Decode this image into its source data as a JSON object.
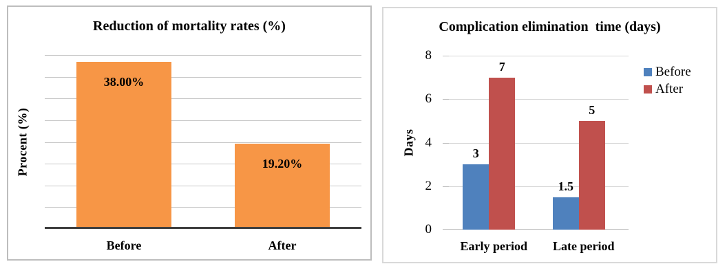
{
  "page": {
    "background": "#ffffff"
  },
  "chart_data": [
    {
      "type": "bar",
      "title": "Reduction of mortality rates (%)",
      "ylabel": "Procent (%)",
      "xlabel": "",
      "categories": [
        "Before",
        "After"
      ],
      "values": [
        38,
        19.2
      ],
      "data_labels": [
        "38.00%",
        "19.20%"
      ],
      "ylim": [
        0,
        40
      ],
      "gridline_step": 5,
      "grid": true,
      "ytick_labels_visible": false,
      "legend": false,
      "bar_color": "#F79646",
      "grid_color": "#C6C6C6",
      "axis_color": "#3F3F3F"
    },
    {
      "type": "bar",
      "title": "Complication elimination  time (days)",
      "ylabel": "Days",
      "xlabel": "",
      "categories": [
        "Early period",
        "Late period"
      ],
      "series": [
        {
          "name": "Before",
          "color": "#4F81BD",
          "values": [
            3,
            1.5
          ],
          "data_labels": [
            "3",
            "1.5"
          ]
        },
        {
          "name": "After",
          "color": "#C0504D",
          "values": [
            7,
            5
          ],
          "data_labels": [
            "7",
            "5"
          ]
        }
      ],
      "ylim": [
        0,
        8
      ],
      "yticks": [
        0,
        2,
        4,
        6,
        8
      ],
      "grid": true,
      "legend_position": "right",
      "grid_color": "#D6D6D6",
      "axis_color": "#BFBFBF"
    }
  ]
}
